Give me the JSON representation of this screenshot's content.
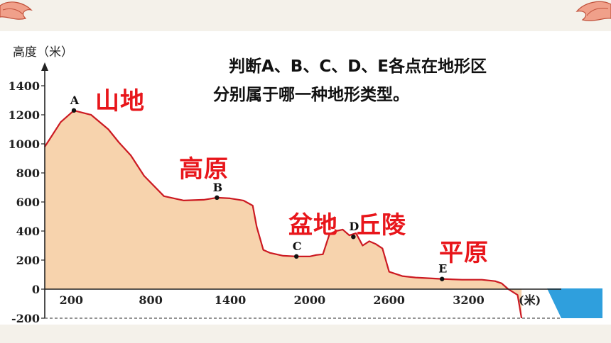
{
  "question": {
    "line1": "判断A、B、C、D、E各点在地形区",
    "line2": "分别属于哪一种地形类型。"
  },
  "landform_labels": {
    "mountain": "山地",
    "plateau": "高原",
    "basin": "盆地",
    "hills": "丘陵",
    "plain": "平原"
  },
  "colors": {
    "terrain_fill": "#f7d3ad",
    "profile_line": "#cc1a22",
    "water": "#2f9fdd",
    "label_red": "#e8161b",
    "band": "#f4f1ea"
  },
  "chart_data": {
    "type": "area",
    "title": "",
    "ylabel": "高度（米）",
    "xlabel": "(米)",
    "ylim": [
      -200,
      1500
    ],
    "xlim": [
      0,
      3900
    ],
    "y_ticks": [
      "1400",
      "1200",
      "1000",
      "800",
      "600",
      "400",
      "200",
      "0",
      "-200"
    ],
    "x_ticks": [
      "200",
      "800",
      "1400",
      "2000",
      "2600",
      "3200"
    ],
    "profile": {
      "x": [
        0,
        120,
        220,
        350,
        480,
        560,
        650,
        750,
        900,
        1050,
        1200,
        1300,
        1400,
        1500,
        1570,
        1600,
        1650,
        1700,
        1800,
        1900,
        2000,
        2050,
        2100,
        2150,
        2200,
        2250,
        2300,
        2350,
        2400,
        2450,
        2500,
        2550,
        2600,
        2700,
        2800,
        2900,
        3000,
        3150,
        3300,
        3400,
        3450,
        3500,
        3570,
        3600
      ],
      "y": [
        980,
        1150,
        1230,
        1200,
        1100,
        1010,
        920,
        780,
        640,
        610,
        615,
        630,
        625,
        610,
        575,
        430,
        270,
        250,
        230,
        225,
        225,
        235,
        240,
        380,
        400,
        410,
        370,
        385,
        300,
        330,
        310,
        280,
        120,
        90,
        80,
        75,
        70,
        65,
        65,
        55,
        40,
        0,
        -40,
        -200
      ]
    },
    "points": [
      {
        "label": "A",
        "x": 220,
        "y": 1230
      },
      {
        "label": "B",
        "x": 1300,
        "y": 630
      },
      {
        "label": "C",
        "x": 1900,
        "y": 225
      },
      {
        "label": "D",
        "x": 2330,
        "y": 360
      },
      {
        "label": "E",
        "x": 3000,
        "y": 70
      }
    ]
  }
}
